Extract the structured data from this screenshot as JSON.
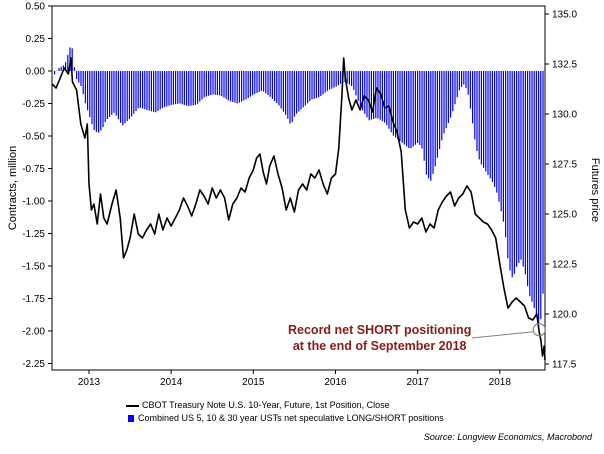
{
  "chart_data": {
    "type": "bar+line",
    "left_axis": {
      "label": "Contracts, million",
      "ticks": [
        "0.50",
        "0.25",
        "0.00",
        "-0.25",
        "-0.50",
        "-0.75",
        "-1.00",
        "-1.25",
        "-1.50",
        "-1.75",
        "-2.00",
        "-2.25"
      ],
      "range": [
        -2.3,
        0.5
      ]
    },
    "right_axis": {
      "label": "Futures price",
      "ticks": [
        "135.0",
        "132.5",
        "130.0",
        "127.5",
        "125.0",
        "122.5",
        "120.0",
        "117.5"
      ],
      "range": [
        117.2,
        135.4
      ]
    },
    "x_ticks": [
      "2013",
      "2014",
      "2015",
      "2016",
      "2017",
      "2018"
    ],
    "x_range": [
      2012.55,
      2018.55
    ],
    "series": [
      {
        "name": "CBOT Treasury Note U.S. 10-Year, Future, 1st Position, Close",
        "type": "line",
        "axis": "right",
        "color": "#000000",
        "points": [
          [
            2012.55,
            131.5
          ],
          [
            2012.6,
            131.3
          ],
          [
            2012.65,
            131.8
          ],
          [
            2012.7,
            132.3
          ],
          [
            2012.75,
            132.0
          ],
          [
            2012.78,
            132.8
          ],
          [
            2012.8,
            131.6
          ],
          [
            2012.85,
            131.2
          ],
          [
            2012.9,
            129.5
          ],
          [
            2012.95,
            128.8
          ],
          [
            2012.98,
            129.5
          ],
          [
            2013.0,
            126.5
          ],
          [
            2013.03,
            125.2
          ],
          [
            2013.06,
            125.5
          ],
          [
            2013.1,
            124.5
          ],
          [
            2013.14,
            126.0
          ],
          [
            2013.18,
            124.8
          ],
          [
            2013.22,
            124.5
          ],
          [
            2013.28,
            125.5
          ],
          [
            2013.33,
            126.2
          ],
          [
            2013.38,
            124.8
          ],
          [
            2013.42,
            122.8
          ],
          [
            2013.46,
            123.2
          ],
          [
            2013.5,
            123.8
          ],
          [
            2013.55,
            125.0
          ],
          [
            2013.6,
            124.0
          ],
          [
            2013.65,
            123.8
          ],
          [
            2013.7,
            124.2
          ],
          [
            2013.75,
            124.5
          ],
          [
            2013.8,
            124.0
          ],
          [
            2013.85,
            125.0
          ],
          [
            2013.9,
            124.2
          ],
          [
            2013.95,
            124.8
          ],
          [
            2014.0,
            124.4
          ],
          [
            2014.05,
            124.8
          ],
          [
            2014.1,
            125.2
          ],
          [
            2014.15,
            125.8
          ],
          [
            2014.2,
            125.4
          ],
          [
            2014.25,
            124.9
          ],
          [
            2014.3,
            125.5
          ],
          [
            2014.35,
            126.2
          ],
          [
            2014.4,
            125.9
          ],
          [
            2014.45,
            125.5
          ],
          [
            2014.5,
            126.3
          ],
          [
            2014.55,
            125.8
          ],
          [
            2014.6,
            126.2
          ],
          [
            2014.65,
            125.8
          ],
          [
            2014.7,
            124.7
          ],
          [
            2014.75,
            125.5
          ],
          [
            2014.8,
            125.8
          ],
          [
            2014.85,
            126.3
          ],
          [
            2014.9,
            126.1
          ],
          [
            2014.95,
            126.8
          ],
          [
            2015.0,
            127.2
          ],
          [
            2015.04,
            127.8
          ],
          [
            2015.08,
            128.0
          ],
          [
            2015.12,
            127.1
          ],
          [
            2015.16,
            126.5
          ],
          [
            2015.2,
            127.4
          ],
          [
            2015.25,
            127.9
          ],
          [
            2015.3,
            127.0
          ],
          [
            2015.35,
            126.3
          ],
          [
            2015.4,
            125.2
          ],
          [
            2015.45,
            125.8
          ],
          [
            2015.5,
            125.1
          ],
          [
            2015.55,
            126.2
          ],
          [
            2015.6,
            126.5
          ],
          [
            2015.65,
            126.2
          ],
          [
            2015.7,
            127.0
          ],
          [
            2015.75,
            126.8
          ],
          [
            2015.8,
            127.2
          ],
          [
            2015.85,
            126.5
          ],
          [
            2015.9,
            126.0
          ],
          [
            2015.95,
            126.8
          ],
          [
            2016.0,
            127.0
          ],
          [
            2016.04,
            128.3
          ],
          [
            2016.08,
            131.0
          ],
          [
            2016.1,
            132.8
          ],
          [
            2016.12,
            131.8
          ],
          [
            2016.16,
            130.8
          ],
          [
            2016.2,
            130.2
          ],
          [
            2016.25,
            130.7
          ],
          [
            2016.3,
            130.2
          ],
          [
            2016.35,
            130.9
          ],
          [
            2016.4,
            130.7
          ],
          [
            2016.45,
            130.1
          ],
          [
            2016.5,
            131.3
          ],
          [
            2016.55,
            131.0
          ],
          [
            2016.6,
            130.3
          ],
          [
            2016.65,
            130.4
          ],
          [
            2016.7,
            129.6
          ],
          [
            2016.75,
            129.1
          ],
          [
            2016.8,
            128.1
          ],
          [
            2016.85,
            125.2
          ],
          [
            2016.9,
            124.3
          ],
          [
            2016.95,
            124.6
          ],
          [
            2017.0,
            124.5
          ],
          [
            2017.05,
            124.8
          ],
          [
            2017.1,
            124.1
          ],
          [
            2017.15,
            124.5
          ],
          [
            2017.2,
            124.3
          ],
          [
            2017.25,
            125.2
          ],
          [
            2017.3,
            125.6
          ],
          [
            2017.35,
            125.9
          ],
          [
            2017.4,
            126.1
          ],
          [
            2017.45,
            125.4
          ],
          [
            2017.5,
            125.8
          ],
          [
            2017.55,
            126.0
          ],
          [
            2017.6,
            126.4
          ],
          [
            2017.65,
            126.1
          ],
          [
            2017.7,
            125.0
          ],
          [
            2017.75,
            124.8
          ],
          [
            2017.8,
            124.6
          ],
          [
            2017.85,
            124.5
          ],
          [
            2017.9,
            124.2
          ],
          [
            2017.95,
            123.8
          ],
          [
            2018.0,
            122.5
          ],
          [
            2018.05,
            121.3
          ],
          [
            2018.1,
            120.3
          ],
          [
            2018.15,
            120.6
          ],
          [
            2018.2,
            120.8
          ],
          [
            2018.25,
            120.6
          ],
          [
            2018.3,
            120.4
          ],
          [
            2018.35,
            119.8
          ],
          [
            2018.4,
            119.7
          ],
          [
            2018.45,
            120.0
          ],
          [
            2018.48,
            119.1
          ],
          [
            2018.5,
            118.7
          ],
          [
            2018.52,
            117.9
          ],
          [
            2018.54,
            118.4
          ],
          [
            2018.55,
            117.7
          ]
        ]
      },
      {
        "name": "Combined US 5, 10 & 30 year USTs net speculative LONG/SHORT positions",
        "type": "bar",
        "axis": "left",
        "color": "#0000ff",
        "points": [
          [
            2012.55,
            -0.05
          ],
          [
            2012.62,
            0.02
          ],
          [
            2012.7,
            0.05
          ],
          [
            2012.78,
            0.22
          ],
          [
            2012.83,
            -0.05
          ],
          [
            2012.9,
            -0.12
          ],
          [
            2012.95,
            -0.25
          ],
          [
            2013.0,
            -0.35
          ],
          [
            2013.05,
            -0.45
          ],
          [
            2013.1,
            -0.48
          ],
          [
            2013.15,
            -0.45
          ],
          [
            2013.2,
            -0.38
          ],
          [
            2013.3,
            -0.32
          ],
          [
            2013.4,
            -0.42
          ],
          [
            2013.5,
            -0.36
          ],
          [
            2013.6,
            -0.28
          ],
          [
            2013.7,
            -0.3
          ],
          [
            2013.8,
            -0.32
          ],
          [
            2013.9,
            -0.28
          ],
          [
            2014.0,
            -0.26
          ],
          [
            2014.1,
            -0.25
          ],
          [
            2014.2,
            -0.27
          ],
          [
            2014.3,
            -0.26
          ],
          [
            2014.4,
            -0.2
          ],
          [
            2014.5,
            -0.18
          ],
          [
            2014.6,
            -0.19
          ],
          [
            2014.7,
            -0.23
          ],
          [
            2014.8,
            -0.25
          ],
          [
            2014.9,
            -0.22
          ],
          [
            2015.0,
            -0.18
          ],
          [
            2015.1,
            -0.15
          ],
          [
            2015.2,
            -0.2
          ],
          [
            2015.3,
            -0.26
          ],
          [
            2015.4,
            -0.35
          ],
          [
            2015.45,
            -0.42
          ],
          [
            2015.5,
            -0.34
          ],
          [
            2015.6,
            -0.28
          ],
          [
            2015.7,
            -0.22
          ],
          [
            2015.8,
            -0.2
          ],
          [
            2015.9,
            -0.15
          ],
          [
            2016.0,
            -0.12
          ],
          [
            2016.1,
            -0.08
          ],
          [
            2016.2,
            -0.12
          ],
          [
            2016.3,
            -0.28
          ],
          [
            2016.4,
            -0.38
          ],
          [
            2016.5,
            -0.36
          ],
          [
            2016.6,
            -0.4
          ],
          [
            2016.7,
            -0.5
          ],
          [
            2016.8,
            -0.55
          ],
          [
            2016.9,
            -0.6
          ],
          [
            2017.0,
            -0.55
          ],
          [
            2017.05,
            -0.6
          ],
          [
            2017.1,
            -0.8
          ],
          [
            2017.15,
            -0.85
          ],
          [
            2017.2,
            -0.75
          ],
          [
            2017.3,
            -0.5
          ],
          [
            2017.4,
            -0.35
          ],
          [
            2017.5,
            -0.15
          ],
          [
            2017.55,
            -0.1
          ],
          [
            2017.6,
            -0.15
          ],
          [
            2017.65,
            -0.35
          ],
          [
            2017.7,
            -0.58
          ],
          [
            2017.75,
            -0.7
          ],
          [
            2017.8,
            -0.75
          ],
          [
            2017.85,
            -0.8
          ],
          [
            2017.9,
            -0.85
          ],
          [
            2017.95,
            -0.92
          ],
          [
            2018.0,
            -1.05
          ],
          [
            2018.05,
            -1.2
          ],
          [
            2018.1,
            -1.5
          ],
          [
            2018.15,
            -1.6
          ],
          [
            2018.2,
            -1.5
          ],
          [
            2018.25,
            -1.45
          ],
          [
            2018.3,
            -1.55
          ],
          [
            2018.35,
            -1.72
          ],
          [
            2018.4,
            -1.8
          ],
          [
            2018.45,
            -1.9
          ],
          [
            2018.48,
            -1.99
          ],
          [
            2018.5,
            -1.85
          ],
          [
            2018.52,
            -1.7
          ],
          [
            2018.55,
            -1.52
          ]
        ]
      }
    ]
  },
  "annotation": {
    "line1": "Record net SHORT positioning",
    "line2": "at the end of September 2018",
    "color": "#8b1a1a",
    "target": [
      2018.48,
      -1.99
    ]
  },
  "legend": [
    {
      "label": "CBOT Treasury Note U.S. 10-Year, Future, 1st Position, Close",
      "swatch": "line"
    },
    {
      "label": "Combined US 5, 10 & 30 year USTs net speculative LONG/SHORT positions",
      "swatch": "box"
    }
  ],
  "source": "Source: Longview Economics, Macrobond"
}
